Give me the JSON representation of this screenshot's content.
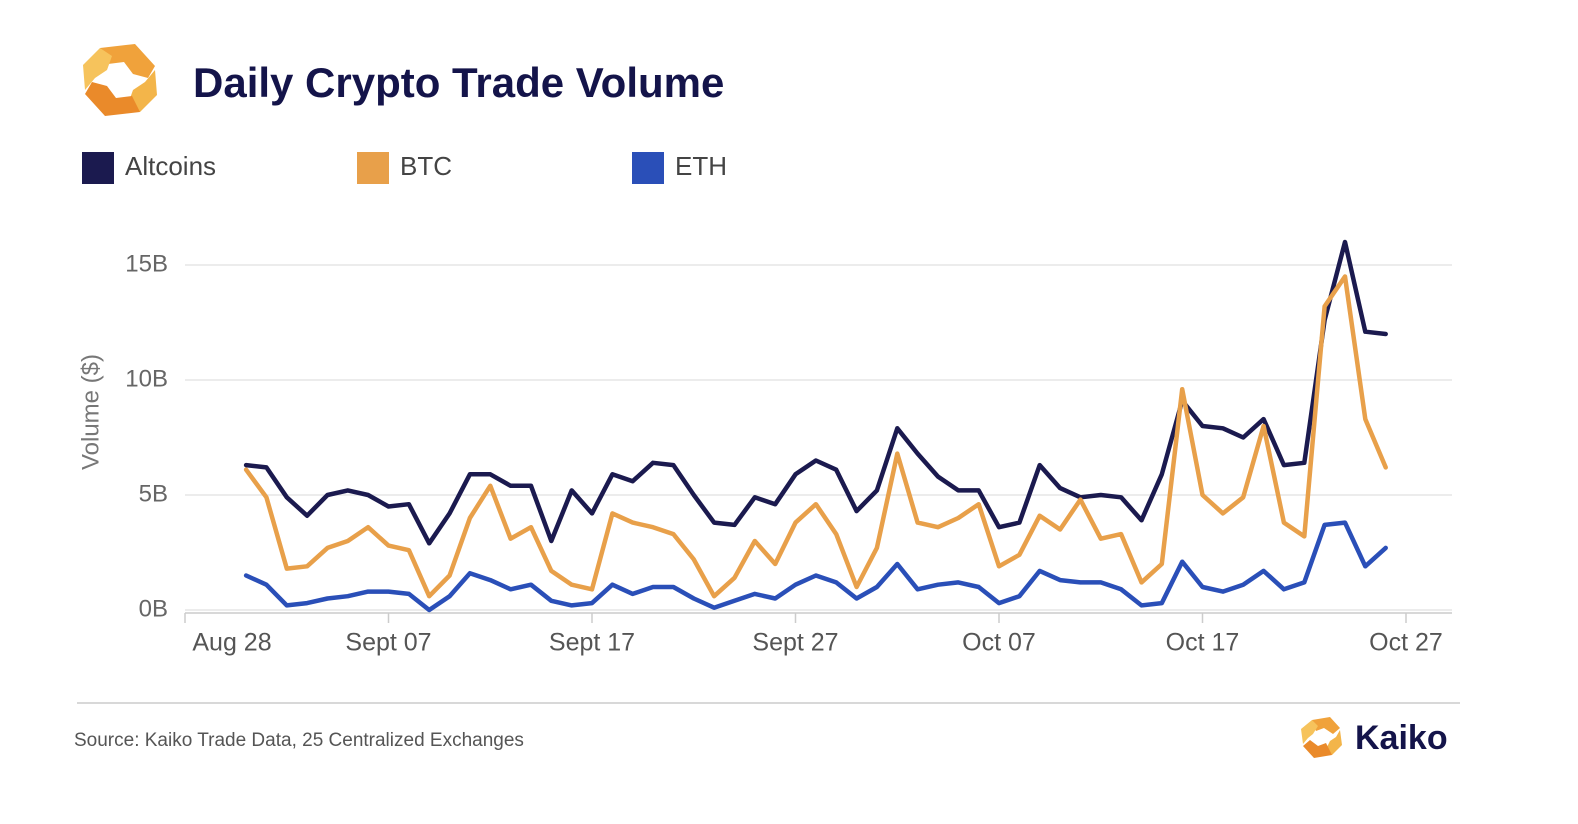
{
  "chart_data": {
    "type": "line",
    "title": "Daily Crypto Trade Volume",
    "y_label": "Volume ($)",
    "source": "Source: Kaiko Trade Data, 25 Centralized Exchanges",
    "brand": "Kaiko",
    "categories": [
      "Aug 28",
      null,
      null,
      null,
      null,
      null,
      null,
      null,
      null,
      null,
      "Sept 07",
      null,
      null,
      null,
      null,
      null,
      null,
      null,
      null,
      null,
      "Sept 17",
      null,
      null,
      null,
      null,
      null,
      null,
      null,
      null,
      null,
      "Sept 27",
      null,
      null,
      null,
      null,
      null,
      null,
      null,
      null,
      null,
      "Oct 07",
      null,
      null,
      null,
      null,
      null,
      null,
      null,
      null,
      null,
      "Oct 17",
      null,
      null,
      null,
      null,
      null,
      null,
      null,
      null,
      null,
      "Oct 27"
    ],
    "series": [
      {
        "name": "Altcoins",
        "color": "#1b1a4f",
        "values": [
          null,
          null,
          null,
          6.3,
          6.2,
          4.9,
          4.1,
          5.0,
          5.2,
          5.0,
          4.5,
          4.6,
          2.9,
          4.2,
          5.9,
          5.9,
          5.4,
          5.4,
          3.0,
          5.2,
          4.2,
          5.9,
          5.6,
          6.4,
          6.3,
          5.0,
          3.8,
          3.7,
          4.9,
          4.6,
          5.9,
          6.5,
          6.1,
          4.3,
          5.2,
          7.9,
          6.8,
          5.8,
          5.2,
          5.2,
          3.6,
          3.8,
          6.3,
          5.3,
          4.9,
          5.0,
          4.9,
          3.9,
          5.9,
          9.1,
          8.0,
          7.9,
          7.5,
          8.3,
          6.3,
          6.4,
          12.6,
          16.0,
          12.1,
          12.0,
          null
        ]
      },
      {
        "name": "BTC",
        "color": "#e8a04a",
        "values": [
          null,
          null,
          null,
          6.1,
          4.9,
          1.8,
          1.9,
          2.7,
          3.0,
          3.6,
          2.8,
          2.6,
          0.6,
          1.5,
          4.0,
          5.4,
          3.1,
          3.6,
          1.7,
          1.1,
          0.9,
          4.2,
          3.8,
          3.6,
          3.3,
          2.2,
          0.6,
          1.4,
          3.0,
          2.0,
          3.8,
          4.6,
          3.3,
          1.0,
          2.7,
          6.8,
          3.8,
          3.6,
          4.0,
          4.6,
          1.9,
          2.4,
          4.1,
          3.5,
          4.8,
          3.1,
          3.3,
          1.2,
          2.0,
          9.6,
          5.0,
          4.2,
          4.9,
          8.0,
          3.8,
          3.2,
          13.2,
          14.5,
          8.3,
          6.2,
          null
        ]
      },
      {
        "name": "ETH",
        "color": "#2a4fb8",
        "values": [
          null,
          null,
          null,
          1.5,
          1.1,
          0.2,
          0.3,
          0.5,
          0.6,
          0.8,
          0.8,
          0.7,
          0.0,
          0.6,
          1.6,
          1.3,
          0.9,
          1.1,
          0.4,
          0.2,
          0.3,
          1.1,
          0.7,
          1.0,
          1.0,
          0.5,
          0.1,
          0.4,
          0.7,
          0.5,
          1.1,
          1.5,
          1.2,
          0.5,
          1.0,
          2.0,
          0.9,
          1.1,
          1.2,
          1.0,
          0.3,
          0.6,
          1.7,
          1.3,
          1.2,
          1.2,
          0.9,
          0.2,
          0.3,
          2.1,
          1.0,
          0.8,
          1.1,
          1.7,
          0.9,
          1.2,
          3.7,
          3.8,
          1.9,
          2.7,
          null
        ]
      }
    ],
    "ylim": [
      0,
      16.5
    ],
    "yticks": [
      {
        "value": 0,
        "label": "0B"
      },
      {
        "value": 5,
        "label": "5B"
      },
      {
        "value": 10,
        "label": "10B"
      },
      {
        "value": 15,
        "label": "15B"
      }
    ],
    "grid": true
  }
}
